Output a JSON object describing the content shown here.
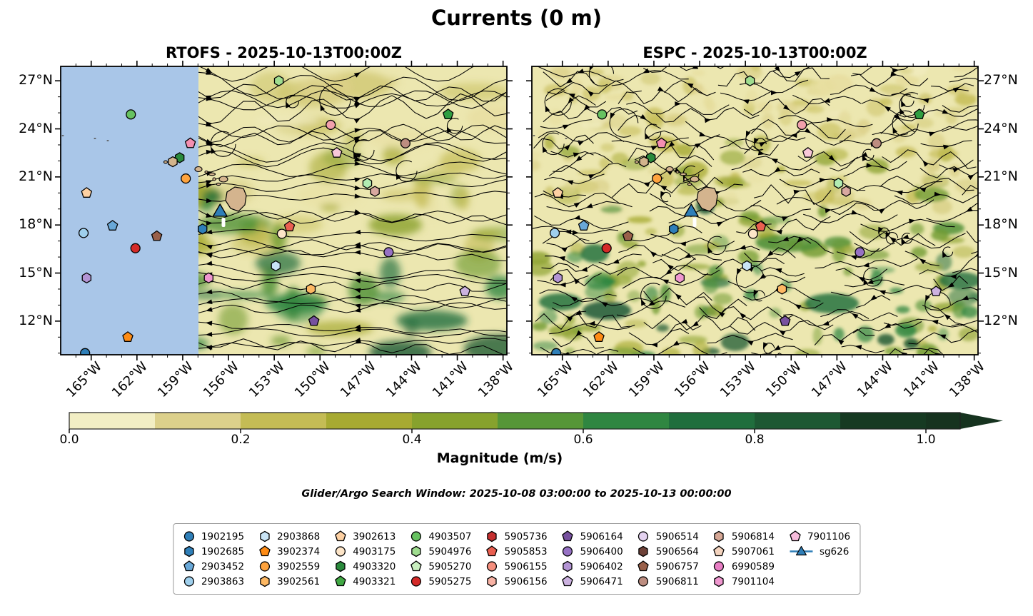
{
  "chart_data": {
    "type": "streamline-map",
    "title": "Currents (0 m)",
    "panels": [
      {
        "id": "rtofs",
        "title": "RTOFS - 2025-10-13T00:00Z",
        "no_data_region": {
          "color": "#a9c6e8",
          "lon_west_range": [
            167.0,
            158.1
          ]
        }
      },
      {
        "id": "espc",
        "title": "ESPC - 2025-10-13T00:00Z"
      }
    ],
    "axes": {
      "x_tick_labels": [
        "165°W",
        "162°W",
        "159°W",
        "156°W",
        "153°W",
        "150°W",
        "147°W",
        "144°W",
        "141°W",
        "138°W"
      ],
      "x_tick_values_lon_w": [
        165,
        162,
        159,
        156,
        153,
        150,
        147,
        144,
        141,
        138
      ],
      "y_tick_labels": [
        "27°N",
        "24°N",
        "21°N",
        "18°N",
        "15°N",
        "12°N"
      ],
      "y_tick_values_lat_n": [
        27,
        24,
        21,
        18,
        15,
        12
      ],
      "lon_west_range": [
        167.0,
        137.75
      ],
      "lat_north_range": [
        9.9,
        27.9
      ]
    },
    "colorbar": {
      "label": "Magnitude (m/s)",
      "tick_labels": [
        "0.0",
        "0.2",
        "0.4",
        "0.6",
        "0.8",
        "1.0"
      ],
      "range": [
        0.0,
        1.0
      ],
      "extend": "max",
      "segment_colors": [
        "#f2eec4",
        "#dcd08b",
        "#c4bc55",
        "#a7aa32",
        "#87a22d",
        "#569637",
        "#2f8641",
        "#206e3d",
        "#1d5833",
        "#163a22",
        "#16331f"
      ]
    },
    "land_color": "#d4b48e",
    "search_window": "Glider/Argo Search Window: 2025-10-08 03:00:00 to 2025-10-13 00:00:00",
    "legend_entries": [
      {
        "id": "1902195",
        "marker": "circle",
        "color": "#2f7fb8"
      },
      {
        "id": "1902685",
        "marker": "hexagon",
        "color": "#2f7fb8"
      },
      {
        "id": "2903452",
        "marker": "pentagon",
        "color": "#69a8d8"
      },
      {
        "id": "2903863",
        "marker": "circle",
        "color": "#9fcfec"
      },
      {
        "id": "2903868",
        "marker": "hexagon",
        "color": "#c9e4f6"
      },
      {
        "id": "3902374",
        "marker": "pentagon",
        "color": "#fe8b14"
      },
      {
        "id": "3902559",
        "marker": "circle",
        "color": "#fea33e"
      },
      {
        "id": "3902561",
        "marker": "hexagon",
        "color": "#fdb863"
      },
      {
        "id": "3902613",
        "marker": "pentagon",
        "color": "#fdd0a2"
      },
      {
        "id": "4903175",
        "marker": "circle",
        "color": "#fde5c8"
      },
      {
        "id": "4903320",
        "marker": "hexagon",
        "color": "#2a8a3c"
      },
      {
        "id": "4903321",
        "marker": "pentagon",
        "color": "#41a844"
      },
      {
        "id": "4903507",
        "marker": "circle",
        "color": "#67c261"
      },
      {
        "id": "5904976",
        "marker": "hexagon",
        "color": "#9fdd8f"
      },
      {
        "id": "5905270",
        "marker": "pentagon",
        "color": "#c9efbf"
      },
      {
        "id": "5905275",
        "marker": "circle",
        "color": "#d42a28"
      },
      {
        "id": "5905736",
        "marker": "hexagon",
        "color": "#c53030"
      },
      {
        "id": "5905853",
        "marker": "pentagon",
        "color": "#ea5f50"
      },
      {
        "id": "5906155",
        "marker": "circle",
        "color": "#f58f7e"
      },
      {
        "id": "5906156",
        "marker": "hexagon",
        "color": "#f8b2a4"
      },
      {
        "id": "5906164",
        "marker": "pentagon",
        "color": "#77519f"
      },
      {
        "id": "5906400",
        "marker": "circle",
        "color": "#9671c4"
      },
      {
        "id": "5906402",
        "marker": "hexagon",
        "color": "#b394d4"
      },
      {
        "id": "5906471",
        "marker": "pentagon",
        "color": "#ccb2e0"
      },
      {
        "id": "5906514",
        "marker": "circle",
        "color": "#e4d2f0"
      },
      {
        "id": "5906564",
        "marker": "hexagon",
        "color": "#6e4138"
      },
      {
        "id": "5906757",
        "marker": "pentagon",
        "color": "#99604a"
      },
      {
        "id": "5906811",
        "marker": "circle",
        "color": "#bd8d80"
      },
      {
        "id": "5906814",
        "marker": "hexagon",
        "color": "#d6a795"
      },
      {
        "id": "5907061",
        "marker": "pentagon",
        "color": "#f3d3be"
      },
      {
        "id": "6990589",
        "marker": "circle",
        "color": "#e87ec4"
      },
      {
        "id": "7901104",
        "marker": "hexagon",
        "color": "#ef97cf"
      },
      {
        "id": "7901106",
        "marker": "pentagon",
        "color": "#f7bcdc"
      },
      {
        "id": "sg626",
        "marker": "triangle-line",
        "color": "#2f7fb8"
      }
    ],
    "markers_both_panels": [
      {
        "shape": "circle",
        "color": "#67c261",
        "lon_w": 162.4,
        "lat_n": 24.9
      },
      {
        "shape": "pentagon",
        "color": "#f48fb1",
        "lon_w": 158.5,
        "lat_n": 23.1
      },
      {
        "shape": "hexagon",
        "color": "#2a8a3c",
        "lon_w": 159.2,
        "lat_n": 22.2
      },
      {
        "shape": "hexagon",
        "color": "#d2b48c",
        "lon_w": 159.65,
        "lat_n": 21.95
      },
      {
        "shape": "circle",
        "color": "#fea33e",
        "lon_w": 158.8,
        "lat_n": 20.9
      },
      {
        "shape": "pentagon",
        "color": "#fdd0a2",
        "lon_w": 165.3,
        "lat_n": 20.0
      },
      {
        "shape": "pentagon",
        "color": "#69a8d8",
        "lon_w": 163.6,
        "lat_n": 17.95
      },
      {
        "shape": "circle",
        "color": "#9fcfec",
        "lon_w": 165.5,
        "lat_n": 17.5
      },
      {
        "shape": "pentagon",
        "color": "#99604a",
        "lon_w": 160.7,
        "lat_n": 17.3
      },
      {
        "shape": "circle",
        "color": "#d42a28",
        "lon_w": 162.1,
        "lat_n": 16.55
      },
      {
        "shape": "hexagon",
        "color": "#b394d4",
        "lon_w": 165.3,
        "lat_n": 14.7
      },
      {
        "shape": "pentagon",
        "color": "#fe8b14",
        "lon_w": 162.6,
        "lat_n": 11.0
      },
      {
        "shape": "circle",
        "color": "#2f7fb8",
        "lon_w": 165.4,
        "lat_n": 10.0
      },
      {
        "shape": "hexagon",
        "color": "#2f7fb8",
        "lon_w": 157.7,
        "lat_n": 17.75
      },
      {
        "shape": "hexagon",
        "color": "#c9e4f6",
        "lon_w": 152.9,
        "lat_n": 15.45
      },
      {
        "shape": "circle",
        "color": "#f2a0ac",
        "lon_w": 149.3,
        "lat_n": 24.25
      },
      {
        "shape": "pentagon",
        "color": "#2f9e41",
        "lon_w": 141.6,
        "lat_n": 24.9
      },
      {
        "shape": "circle",
        "color": "#bd8d80",
        "lon_w": 144.4,
        "lat_n": 23.1
      },
      {
        "shape": "pentagon",
        "color": "#f8c8d8",
        "lon_w": 148.9,
        "lat_n": 22.5
      },
      {
        "shape": "hexagon",
        "color": "#b2ecb2",
        "lon_w": 146.9,
        "lat_n": 20.6
      },
      {
        "shape": "hexagon",
        "color": "#d8a8a0",
        "lon_w": 146.4,
        "lat_n": 20.1
      },
      {
        "shape": "pentagon",
        "color": "#ea5f50",
        "lon_w": 152.0,
        "lat_n": 17.9
      },
      {
        "shape": "circle",
        "color": "#fde5c8",
        "lon_w": 152.5,
        "lat_n": 17.45
      },
      {
        "shape": "circle",
        "color": "#9671c4",
        "lon_w": 145.5,
        "lat_n": 16.3
      },
      {
        "shape": "hexagon",
        "color": "#fdb863",
        "lon_w": 150.6,
        "lat_n": 14.0
      },
      {
        "shape": "pentagon",
        "color": "#ccb2e0",
        "lon_w": 140.5,
        "lat_n": 13.85
      },
      {
        "shape": "pentagon",
        "color": "#77519f",
        "lon_w": 150.4,
        "lat_n": 12.0
      },
      {
        "shape": "hexagon",
        "color": "#9fdd8f",
        "lon_w": 152.7,
        "lat_n": 27.0
      },
      {
        "shape": "hexagon",
        "color": "#ef97cf",
        "lon_w": 157.3,
        "lat_n": 14.7
      }
    ],
    "glider": {
      "id": "sg626",
      "shape": "triangle",
      "color": "#2f7fb8",
      "lon_w": 156.55,
      "lat_n": 18.8
    }
  }
}
